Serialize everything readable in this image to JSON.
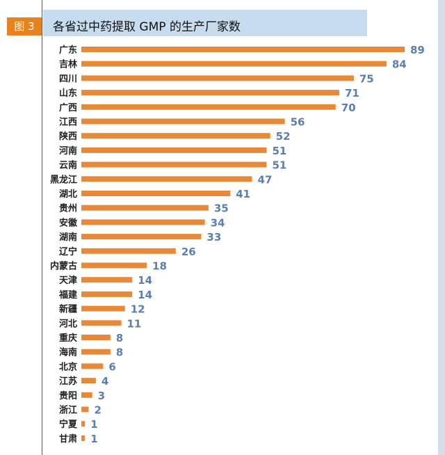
{
  "figure": {
    "tag": "图 3",
    "title": "各省过中药提取 GMP 的生产厂家数"
  },
  "colors": {
    "bar": "#e8893a",
    "value_label": "#5b7eb3",
    "tag_background": "#e6831e",
    "header_band": "#c7dcee"
  },
  "chart_data": {
    "type": "bar",
    "orientation": "horizontal",
    "title": "各省过中药提取 GMP 的生产厂家数",
    "categories": [
      "广东",
      "吉林",
      "四川",
      "山东",
      "广西",
      "江西",
      "陕西",
      "河南",
      "云南",
      "黑龙江",
      "湖北",
      "贵州",
      "安徽",
      "湖南",
      "辽宁",
      "内蒙古",
      "天津",
      "福建",
      "新疆",
      "河北",
      "重庆",
      "海南",
      "北京",
      "江苏",
      "贵阳",
      "浙江",
      "宁夏",
      "甘肃"
    ],
    "values": [
      89,
      84,
      75,
      71,
      70,
      56,
      52,
      51,
      51,
      47,
      41,
      35,
      34,
      33,
      26,
      18,
      14,
      14,
      12,
      11,
      8,
      8,
      6,
      4,
      3,
      2,
      1,
      1
    ],
    "xlim": [
      0,
      89
    ],
    "data_labels": true,
    "grid": false,
    "legend": "none"
  }
}
